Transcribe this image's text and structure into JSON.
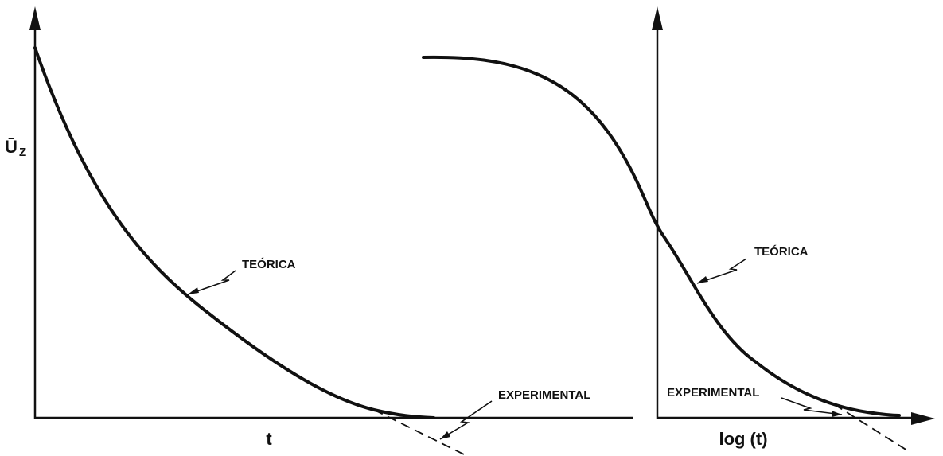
{
  "left_panel": {
    "y_label": "Ū",
    "y_label_sub": "Z",
    "x_label": "t",
    "curve_label": "TEÓRICA",
    "dashed_label": "EXPERIMENTAL"
  },
  "right_panel": {
    "x_label": "log (t)",
    "curve_label": "TEÓRICA",
    "dashed_label": "EXPERIMENTAL"
  }
}
